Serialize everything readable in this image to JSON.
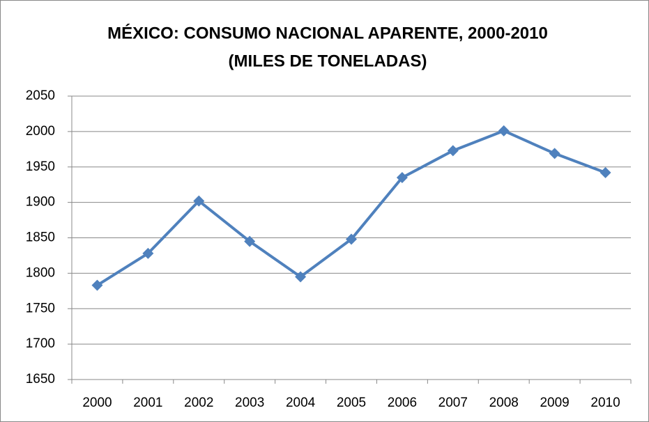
{
  "chart_data": {
    "type": "line",
    "title": [
      "MÉXICO: CONSUMO NACIONAL APARENTE, 2000-2010",
      "(MILES DE TONELADAS)"
    ],
    "categories": [
      "2000",
      "2001",
      "2002",
      "2003",
      "2004",
      "2005",
      "2006",
      "2007",
      "2008",
      "2009",
      "2010"
    ],
    "values": [
      1783,
      1828,
      1902,
      1845,
      1795,
      1848,
      1935,
      1973,
      2001,
      1969,
      1942
    ],
    "color": "#4f81bd",
    "ylim": [
      1650,
      2050
    ],
    "yticks": [
      1650,
      1700,
      1750,
      1800,
      1850,
      1900,
      1950,
      2000,
      2050
    ],
    "grid": true
  }
}
